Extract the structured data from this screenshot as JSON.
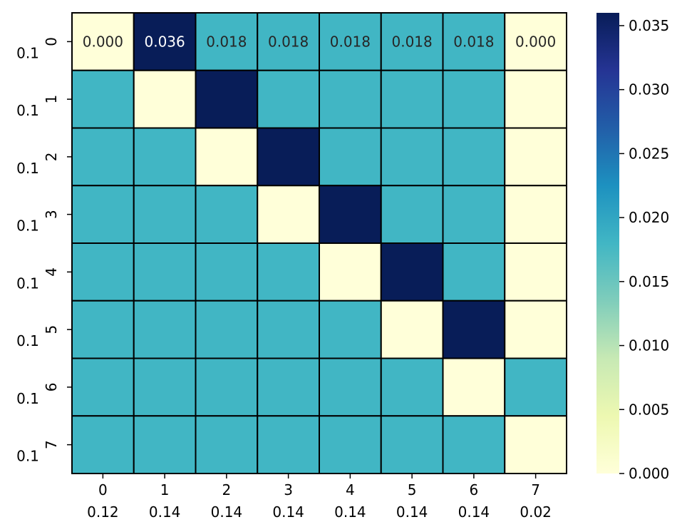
{
  "chart_data": {
    "type": "heatmap",
    "x_tick_labels": [
      "0",
      "1",
      "2",
      "3",
      "4",
      "5",
      "6",
      "7"
    ],
    "x_tick_sublabels": [
      "0.12",
      "0.14",
      "0.14",
      "0.14",
      "0.14",
      "0.14",
      "0.14",
      "0.02"
    ],
    "y_tick_labels": [
      "0",
      "1",
      "2",
      "3",
      "4",
      "5",
      "6",
      "7"
    ],
    "y_tick_sublabels": [
      "0.1",
      "0.1",
      "0.1",
      "0.1",
      "0.1",
      "0.1",
      "0.1",
      "0.1"
    ],
    "values": [
      [
        0.0,
        0.036,
        0.018,
        0.018,
        0.018,
        0.018,
        0.018,
        0.0
      ],
      [
        0.018,
        0.0,
        0.036,
        0.018,
        0.018,
        0.018,
        0.018,
        0.0
      ],
      [
        0.018,
        0.018,
        0.0,
        0.036,
        0.018,
        0.018,
        0.018,
        0.0
      ],
      [
        0.018,
        0.018,
        0.018,
        0.0,
        0.036,
        0.018,
        0.018,
        0.0
      ],
      [
        0.018,
        0.018,
        0.018,
        0.018,
        0.0,
        0.036,
        0.018,
        0.0
      ],
      [
        0.018,
        0.018,
        0.018,
        0.018,
        0.018,
        0.0,
        0.036,
        0.0
      ],
      [
        0.018,
        0.018,
        0.018,
        0.018,
        0.018,
        0.018,
        0.0,
        0.018
      ],
      [
        0.018,
        0.018,
        0.018,
        0.018,
        0.018,
        0.018,
        0.018,
        0.0
      ]
    ],
    "annotated_row": 0,
    "annotation_format": "0.000",
    "vmin": 0.0,
    "vmax": 0.036,
    "colormap": "YlGnBu",
    "colormap_stops": [
      "#ffffd9",
      "#edf8b1",
      "#c7e9b4",
      "#7fcdbb",
      "#41b6c4",
      "#1d91c0",
      "#225ea8",
      "#253494",
      "#081d58"
    ],
    "colorbar_ticks": [
      "0.000",
      "0.005",
      "0.010",
      "0.015",
      "0.020",
      "0.025",
      "0.030",
      "0.035"
    ],
    "cell_border_color": "#000000",
    "annotation_text_dark": "#262626",
    "annotation_text_light": "#ffffff",
    "title": "",
    "xlabel": "",
    "ylabel": ""
  }
}
